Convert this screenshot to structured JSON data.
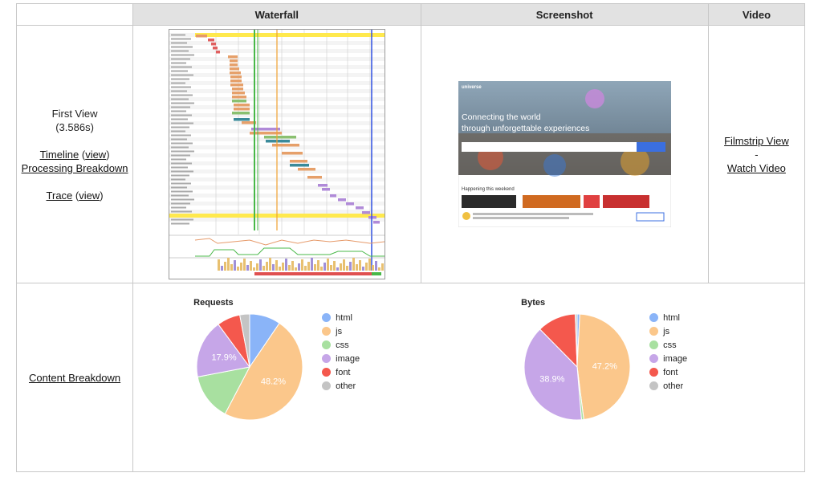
{
  "columns": {
    "waterfall": "Waterfall",
    "screenshot": "Screenshot",
    "video": "Video"
  },
  "first_view": {
    "title": "First View",
    "time": "(3.586s)",
    "timeline": "Timeline",
    "view1": "view",
    "processing": "Processing Breakdown",
    "trace": "Trace",
    "view2": "view"
  },
  "video": {
    "filmstrip": "Filmstrip View",
    "dash": "-",
    "watch": "Watch Video"
  },
  "screenshot": {
    "brand": "universe",
    "headline1": "Connecting the world",
    "headline2": "through unforgettable experiences",
    "section": "Happening this weekend"
  },
  "content": {
    "label": "Content Breakdown"
  },
  "colors": {
    "html": "#8ab4f8",
    "js": "#fbc78b",
    "css": "#a8e0a0",
    "image": "#c6a6e8",
    "font": "#f4584d",
    "other": "#c4c4c4"
  },
  "chart_data": [
    {
      "type": "pie",
      "title": "Requests",
      "labels": [
        "html",
        "js",
        "css",
        "image",
        "font",
        "other"
      ],
      "values": [
        9.5,
        48.2,
        14.3,
        17.9,
        7.1,
        3.0
      ],
      "slice_labels": [
        "",
        "48.2%",
        "",
        "17.9%",
        "",
        ""
      ],
      "legend": "right"
    },
    {
      "type": "pie",
      "title": "Bytes",
      "labels": [
        "html",
        "js",
        "css",
        "image",
        "font",
        "other"
      ],
      "values": [
        0.8,
        47.2,
        0.7,
        38.9,
        11.8,
        0.6
      ],
      "slice_labels": [
        "",
        "47.2%",
        "",
        "38.9%",
        "",
        ""
      ],
      "legend": "right"
    }
  ]
}
